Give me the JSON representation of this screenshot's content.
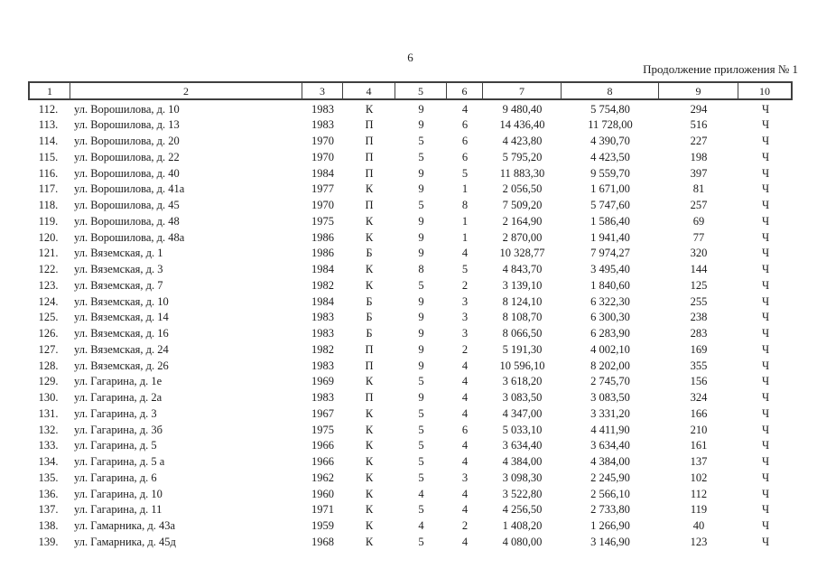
{
  "page": {
    "number": "6",
    "caption": "Продолжение приложения № 1"
  },
  "table": {
    "column_headers": [
      "1",
      "2",
      "3",
      "4",
      "5",
      "6",
      "7",
      "8",
      "9",
      "10"
    ],
    "rows": [
      [
        "112.",
        "ул. Ворошилова, д. 10",
        "1983",
        "К",
        "9",
        "4",
        "9 480,40",
        "5 754,80",
        "294",
        "Ч"
      ],
      [
        "113.",
        "ул. Ворошилова, д. 13",
        "1983",
        "П",
        "9",
        "6",
        "14 436,40",
        "11 728,00",
        "516",
        "Ч"
      ],
      [
        "114.",
        "ул. Ворошилова, д. 20",
        "1970",
        "П",
        "5",
        "6",
        "4 423,80",
        "4 390,70",
        "227",
        "Ч"
      ],
      [
        "115.",
        "ул. Ворошилова, д. 22",
        "1970",
        "П",
        "5",
        "6",
        "5 795,20",
        "4 423,50",
        "198",
        "Ч"
      ],
      [
        "116.",
        "ул. Ворошилова, д. 40",
        "1984",
        "П",
        "9",
        "5",
        "11 883,30",
        "9 559,70",
        "397",
        "Ч"
      ],
      [
        "117.",
        "ул. Ворошилова, д. 41а",
        "1977",
        "К",
        "9",
        "1",
        "2 056,50",
        "1 671,00",
        "81",
        "Ч"
      ],
      [
        "118.",
        "ул. Ворошилова, д. 45",
        "1970",
        "П",
        "5",
        "8",
        "7 509,20",
        "5 747,60",
        "257",
        "Ч"
      ],
      [
        "119.",
        "ул. Ворошилова, д. 48",
        "1975",
        "К",
        "9",
        "1",
        "2 164,90",
        "1 586,40",
        "69",
        "Ч"
      ],
      [
        "120.",
        "ул. Ворошилова, д. 48а",
        "1986",
        "К",
        "9",
        "1",
        "2 870,00",
        "1 941,40",
        "77",
        "Ч"
      ],
      [
        "121.",
        "ул. Вяземская, д. 1",
        "1986",
        "Б",
        "9",
        "4",
        "10 328,77",
        "7 974,27",
        "320",
        "Ч"
      ],
      [
        "122.",
        "ул. Вяземская, д. 3",
        "1984",
        "К",
        "8",
        "5",
        "4 843,70",
        "3 495,40",
        "144",
        "Ч"
      ],
      [
        "123.",
        "ул. Вяземская, д. 7",
        "1982",
        "К",
        "5",
        "2",
        "3 139,10",
        "1 840,60",
        "125",
        "Ч"
      ],
      [
        "124.",
        "ул. Вяземская, д. 10",
        "1984",
        "Б",
        "9",
        "3",
        "8 124,10",
        "6 322,30",
        "255",
        "Ч"
      ],
      [
        "125.",
        "ул. Вяземская, д. 14",
        "1983",
        "Б",
        "9",
        "3",
        "8 108,70",
        "6 300,30",
        "238",
        "Ч"
      ],
      [
        "126.",
        "ул. Вяземская, д. 16",
        "1983",
        "Б",
        "9",
        "3",
        "8 066,50",
        "6 283,90",
        "283",
        "Ч"
      ],
      [
        "127.",
        "ул. Вяземская, д. 24",
        "1982",
        "П",
        "9",
        "2",
        "5 191,30",
        "4 002,10",
        "169",
        "Ч"
      ],
      [
        "128.",
        "ул. Вяземская, д. 26",
        "1983",
        "П",
        "9",
        "4",
        "10 596,10",
        "8 202,00",
        "355",
        "Ч"
      ],
      [
        "129.",
        "ул. Гагарина, д. 1е",
        "1969",
        "К",
        "5",
        "4",
        "3 618,20",
        "2 745,70",
        "156",
        "Ч"
      ],
      [
        "130.",
        "ул. Гагарина, д. 2а",
        "1983",
        "П",
        "9",
        "4",
        "3 083,50",
        "3 083,50",
        "324",
        "Ч"
      ],
      [
        "131.",
        "ул. Гагарина, д. 3",
        "1967",
        "К",
        "5",
        "4",
        "4 347,00",
        "3 331,20",
        "166",
        "Ч"
      ],
      [
        "132.",
        "ул. Гагарина, д. 3б",
        "1975",
        "К",
        "5",
        "6",
        "5 033,10",
        "4 411,90",
        "210",
        "Ч"
      ],
      [
        "133.",
        "ул. Гагарина, д. 5",
        "1966",
        "К",
        "5",
        "4",
        "3 634,40",
        "3 634,40",
        "161",
        "Ч"
      ],
      [
        "134.",
        "ул. Гагарина, д. 5 а",
        "1966",
        "К",
        "5",
        "4",
        "4 384,00",
        "4 384,00",
        "137",
        "Ч"
      ],
      [
        "135.",
        "ул. Гагарина, д. 6",
        "1962",
        "К",
        "5",
        "3",
        "3 098,30",
        "2 245,90",
        "102",
        "Ч"
      ],
      [
        "136.",
        "ул. Гагарина, д. 10",
        "1960",
        "К",
        "4",
        "4",
        "3 522,80",
        "2 566,10",
        "112",
        "Ч"
      ],
      [
        "137.",
        "ул. Гагарина, д. 11",
        "1971",
        "К",
        "5",
        "4",
        "4 256,50",
        "2 733,80",
        "119",
        "Ч"
      ],
      [
        "138.",
        "ул. Гамарника, д. 43а",
        "1959",
        "К",
        "4",
        "2",
        "1 408,20",
        "1 266,90",
        "40",
        "Ч"
      ],
      [
        "139.",
        "ул. Гамарника, д. 45д",
        "1968",
        "К",
        "5",
        "4",
        "4 080,00",
        "3 146,90",
        "123",
        "Ч"
      ]
    ]
  }
}
